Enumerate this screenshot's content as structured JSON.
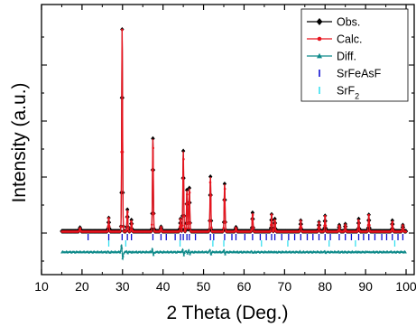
{
  "chart_data": {
    "type": "line",
    "title": "",
    "xlabel": "2 Theta (Deg.)",
    "ylabel": "Intensity (a.u.)",
    "xlim": [
      10,
      102
    ],
    "xticks": [
      10,
      20,
      30,
      40,
      50,
      60,
      70,
      80,
      90,
      100
    ],
    "tick_labels": [
      "10",
      "20",
      "30",
      "40",
      "50",
      "60",
      "70",
      "80",
      "90",
      "100"
    ],
    "y_tick_labels_shown": false,
    "legend_position": "top-right",
    "legend": [
      {
        "key": "obs",
        "label": "Obs.",
        "color": "#000000",
        "marker": "diamond"
      },
      {
        "key": "calc",
        "label": "Calc.",
        "color": "#e8141e",
        "marker": "circle"
      },
      {
        "key": "diff",
        "label": "Diff.",
        "color": "#0f8a8a",
        "marker": "triangle"
      },
      {
        "key": "p1",
        "label": "SrFeAsF",
        "color": "#1010d0",
        "marker": "bar"
      },
      {
        "key": "p2",
        "label": "SrF",
        "subscript": "2",
        "color": "#38e0f0",
        "marker": "bar"
      }
    ],
    "peaks_obs": [
      {
        "x": 19.5,
        "h": 0.018
      },
      {
        "x": 26.6,
        "h": 0.065
      },
      {
        "x": 29.9,
        "h": 0.98
      },
      {
        "x": 31.2,
        "h": 0.105
      },
      {
        "x": 32.2,
        "h": 0.055
      },
      {
        "x": 37.5,
        "h": 0.45
      },
      {
        "x": 39.5,
        "h": 0.022
      },
      {
        "x": 44.3,
        "h": 0.06
      },
      {
        "x": 45.0,
        "h": 0.39
      },
      {
        "x": 45.9,
        "h": 0.2
      },
      {
        "x": 46.5,
        "h": 0.21
      },
      {
        "x": 51.7,
        "h": 0.265
      },
      {
        "x": 55.2,
        "h": 0.23
      },
      {
        "x": 58.0,
        "h": 0.02
      },
      {
        "x": 62.1,
        "h": 0.09
      },
      {
        "x": 66.8,
        "h": 0.082
      },
      {
        "x": 67.6,
        "h": 0.06
      },
      {
        "x": 74.0,
        "h": 0.052
      },
      {
        "x": 78.5,
        "h": 0.045
      },
      {
        "x": 80.0,
        "h": 0.075
      },
      {
        "x": 83.5,
        "h": 0.03
      },
      {
        "x": 85.0,
        "h": 0.035
      },
      {
        "x": 88.3,
        "h": 0.06
      },
      {
        "x": 90.8,
        "h": 0.08
      },
      {
        "x": 96.6,
        "h": 0.052
      },
      {
        "x": 99.2,
        "h": 0.03
      }
    ],
    "reflections_SrFeAsF": [
      21.5,
      26.6,
      29.9,
      31.2,
      32.2,
      37.5,
      39.5,
      40.8,
      43.0,
      44.3,
      45.0,
      45.9,
      46.5,
      48.0,
      51.7,
      52.5,
      55.2,
      57.0,
      58.0,
      60.2,
      62.1,
      64.0,
      65.5,
      66.8,
      67.6,
      69.3,
      71.0,
      72.5,
      74.0,
      75.6,
      77.0,
      78.5,
      80.0,
      81.3,
      83.5,
      85.0,
      86.5,
      88.3,
      89.5,
      90.8,
      92.3,
      94.0,
      95.2,
      96.6,
      98.0,
      99.2
    ],
    "reflections_SrF2": [
      26.6,
      30.8,
      44.2,
      52.3,
      55.0,
      64.3,
      70.8,
      81.0,
      87.5,
      97.2
    ]
  }
}
